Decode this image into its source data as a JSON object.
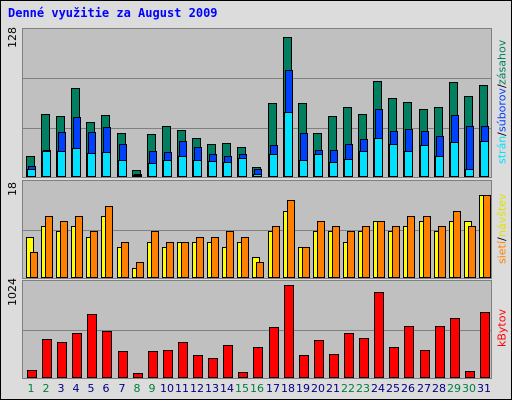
{
  "title": "Denné využitie za August 2009",
  "panels": {
    "top": {
      "max_label": "128"
    },
    "mid": {
      "max_label": "18"
    },
    "bot": {
      "max_label": "1024"
    }
  },
  "legend": {
    "top": {
      "stran": "strán",
      "sep1": " / ",
      "suborov": "súborov",
      "sep2": " / ",
      "zasahov": "zásahov"
    },
    "mid": {
      "sietí": "sietí",
      "sep": " / ",
      "navstev": "návštev"
    },
    "bot": {
      "kbytov": "kBytov"
    }
  },
  "colors": {
    "zasahov": "#008060",
    "suborov": "#0040ff",
    "stran": "#00e0ff",
    "navstev": "#ffff00",
    "sieti": "#ff8000",
    "kbytov": "#ff0000",
    "weekend": "#008040",
    "weekday": "#000080",
    "title": "#0000ff"
  },
  "chart_data": {
    "type": "bar",
    "categories": [
      "1",
      "2",
      "3",
      "4",
      "5",
      "6",
      "7",
      "8",
      "9",
      "10",
      "11",
      "12",
      "13",
      "14",
      "15",
      "16",
      "17",
      "18",
      "19",
      "20",
      "21",
      "22",
      "23",
      "24",
      "25",
      "26",
      "27",
      "28",
      "29",
      "30",
      "31"
    ],
    "weekend_days": [
      "1",
      "2",
      "8",
      "9",
      "15",
      "16",
      "22",
      "23",
      "29",
      "30"
    ],
    "panels": [
      {
        "ylim": [
          0,
          128
        ],
        "series": [
          {
            "name": "zásahov",
            "values": [
              19,
              56,
              54,
              79,
              49,
              55,
              39,
              6,
              38,
              45,
              42,
              35,
              29,
              30,
              27,
              9,
              66,
              124,
              66,
              39,
              54,
              62,
              56,
              85,
              70,
              67,
              60,
              62,
              84,
              72,
              82
            ]
          },
          {
            "name": "súborov",
            "values": [
              10,
              24,
              40,
              53,
              40,
              44,
              29,
              3,
              23,
              22,
              32,
              27,
              20,
              19,
              20,
              7,
              28,
              95,
              39,
              24,
              24,
              29,
              34,
              60,
              41,
              43,
              41,
              36,
              55,
              45,
              45
            ]
          },
          {
            "name": "strán",
            "values": [
              7,
              23,
              23,
              26,
              21,
              22,
              15,
              2,
              12,
              15,
              19,
              15,
              14,
              13,
              17,
              3,
              20,
              58,
              15,
              20,
              13,
              16,
              23,
              35,
              29,
              23,
              28,
              19,
              31,
              7,
              32
            ]
          }
        ]
      },
      {
        "ylim": [
          0,
          18
        ],
        "series": [
          {
            "name": "návštev",
            "values": [
              8,
              10,
              9,
              10,
              8,
              12,
              6,
              2,
              7,
              6,
              7,
              7,
              7,
              6,
              7,
              4,
              9,
              13,
              6,
              9,
              9,
              7,
              9,
              11,
              9,
              10,
              11,
              9,
              11,
              11,
              16
            ]
          },
          {
            "name": "sietí",
            "values": [
              5,
              12,
              11,
              12,
              9,
              14,
              7,
              3,
              9,
              7,
              7,
              8,
              8,
              9,
              8,
              3,
              10,
              15,
              6,
              11,
              10,
              9,
              10,
              11,
              10,
              12,
              12,
              10,
              13,
              10,
              16
            ]
          }
        ]
      },
      {
        "ylim": [
          0,
          1024
        ],
        "series": [
          {
            "name": "kBytov",
            "values": [
              90,
              430,
              400,
              500,
              700,
              520,
              300,
              50,
              300,
              310,
              400,
              250,
              220,
              360,
              70,
              340,
              560,
              1020,
              250,
              420,
              260,
              500,
              440,
              950,
              340,
              570,
              310,
              570,
              660,
              80,
              730
            ]
          }
        ]
      }
    ]
  }
}
